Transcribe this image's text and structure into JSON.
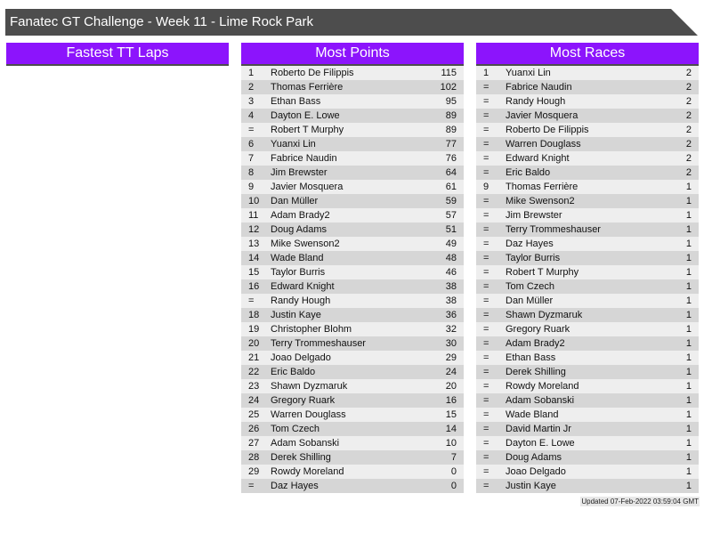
{
  "title": "Fanatec GT Challenge - Week 11 - Lime Rock Park",
  "panels": {
    "fastest": {
      "heading": "Fastest TT Laps"
    },
    "points": {
      "heading": "Most Points",
      "rows": [
        [
          "1",
          "Roberto De Filippis",
          "115"
        ],
        [
          "2",
          "Thomas Ferrière",
          "102"
        ],
        [
          "3",
          "Ethan Bass",
          "95"
        ],
        [
          "4",
          "Dayton E. Lowe",
          "89"
        ],
        [
          "=",
          "Robert T Murphy",
          "89"
        ],
        [
          "6",
          "Yuanxi Lin",
          "77"
        ],
        [
          "7",
          "Fabrice Naudin",
          "76"
        ],
        [
          "8",
          "Jim Brewster",
          "64"
        ],
        [
          "9",
          "Javier Mosquera",
          "61"
        ],
        [
          "10",
          "Dan Müller",
          "59"
        ],
        [
          "11",
          "Adam Brady2",
          "57"
        ],
        [
          "12",
          "Doug Adams",
          "51"
        ],
        [
          "13",
          "Mike Swenson2",
          "49"
        ],
        [
          "14",
          "Wade Bland",
          "48"
        ],
        [
          "15",
          "Taylor Burris",
          "46"
        ],
        [
          "16",
          "Edward Knight",
          "38"
        ],
        [
          "=",
          "Randy Hough",
          "38"
        ],
        [
          "18",
          "Justin Kaye",
          "36"
        ],
        [
          "19",
          "Christopher Blohm",
          "32"
        ],
        [
          "20",
          "Terry Trommeshauser",
          "30"
        ],
        [
          "21",
          "Joao Delgado",
          "29"
        ],
        [
          "22",
          "Eric Baldo",
          "24"
        ],
        [
          "23",
          "Shawn Dyzmaruk",
          "20"
        ],
        [
          "24",
          "Gregory Ruark",
          "16"
        ],
        [
          "25",
          "Warren Douglass",
          "15"
        ],
        [
          "26",
          "Tom Czech",
          "14"
        ],
        [
          "27",
          "Adam Sobanski",
          "10"
        ],
        [
          "28",
          "Derek Shilling",
          "7"
        ],
        [
          "29",
          "Rowdy Moreland",
          "0"
        ],
        [
          "=",
          "Daz Hayes",
          "0"
        ]
      ]
    },
    "races": {
      "heading": "Most Races",
      "rows": [
        [
          "1",
          "Yuanxi Lin",
          "2"
        ],
        [
          "=",
          "Fabrice Naudin",
          "2"
        ],
        [
          "=",
          "Randy Hough",
          "2"
        ],
        [
          "=",
          "Javier Mosquera",
          "2"
        ],
        [
          "=",
          "Roberto De Filippis",
          "2"
        ],
        [
          "=",
          "Warren Douglass",
          "2"
        ],
        [
          "=",
          "Edward Knight",
          "2"
        ],
        [
          "=",
          "Eric Baldo",
          "2"
        ],
        [
          "9",
          "Thomas Ferrière",
          "1"
        ],
        [
          "=",
          "Mike Swenson2",
          "1"
        ],
        [
          "=",
          "Jim Brewster",
          "1"
        ],
        [
          "=",
          "Terry Trommeshauser",
          "1"
        ],
        [
          "=",
          "Daz Hayes",
          "1"
        ],
        [
          "=",
          "Taylor Burris",
          "1"
        ],
        [
          "=",
          "Robert T Murphy",
          "1"
        ],
        [
          "=",
          "Tom Czech",
          "1"
        ],
        [
          "=",
          "Dan Müller",
          "1"
        ],
        [
          "=",
          "Shawn Dyzmaruk",
          "1"
        ],
        [
          "=",
          "Gregory Ruark",
          "1"
        ],
        [
          "=",
          "Adam Brady2",
          "1"
        ],
        [
          "=",
          "Ethan Bass",
          "1"
        ],
        [
          "=",
          "Derek Shilling",
          "1"
        ],
        [
          "=",
          "Rowdy Moreland",
          "1"
        ],
        [
          "=",
          "Adam Sobanski",
          "1"
        ],
        [
          "=",
          "Wade Bland",
          "1"
        ],
        [
          "=",
          "David Martin Jr",
          "1"
        ],
        [
          "=",
          "Dayton E. Lowe",
          "1"
        ],
        [
          "=",
          "Doug Adams",
          "1"
        ],
        [
          "=",
          "Joao Delgado",
          "1"
        ],
        [
          "=",
          "Justin Kaye",
          "1"
        ]
      ]
    }
  },
  "updated": "Updated 07-Feb-2022 03:59:04 GMT"
}
